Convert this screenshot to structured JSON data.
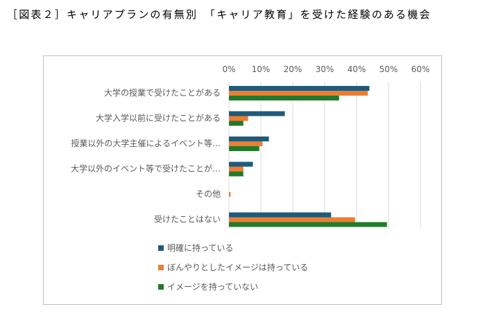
{
  "caption": "［図表２］キャリアプランの有無別　「キャリア教育」を受けた経験のある機会",
  "chart_data": {
    "type": "bar",
    "orientation": "horizontal",
    "categories": [
      "大学の授業で受けたことがある",
      "大学入学以前に受けたことがある",
      "授業以外の大学主催によるイベント等…",
      "大学以外のイベント等で受けたことが…",
      "その他",
      "受けたことはない"
    ],
    "series": [
      {
        "name": "明確に持っている",
        "color": "#1f5a7a",
        "values": [
          44,
          17.5,
          12.5,
          7.5,
          0,
          32
        ]
      },
      {
        "name": "ぼんやりとしたイメージは持っている",
        "color": "#ed7d31",
        "values": [
          43.5,
          6,
          10.5,
          4.5,
          0.5,
          39.5
        ]
      },
      {
        "name": "イメージを持っていない",
        "color": "#217a2b",
        "values": [
          34.5,
          4.5,
          9.5,
          4.5,
          0,
          49.5
        ]
      }
    ],
    "xlim": [
      0,
      60
    ],
    "xticks": [
      "0%",
      "10%",
      "20%",
      "30%",
      "40%",
      "50%",
      "60%"
    ],
    "tick_values": [
      0,
      10,
      20,
      30,
      40,
      50,
      60
    ],
    "grid": true,
    "legend_position": "bottom-left"
  }
}
